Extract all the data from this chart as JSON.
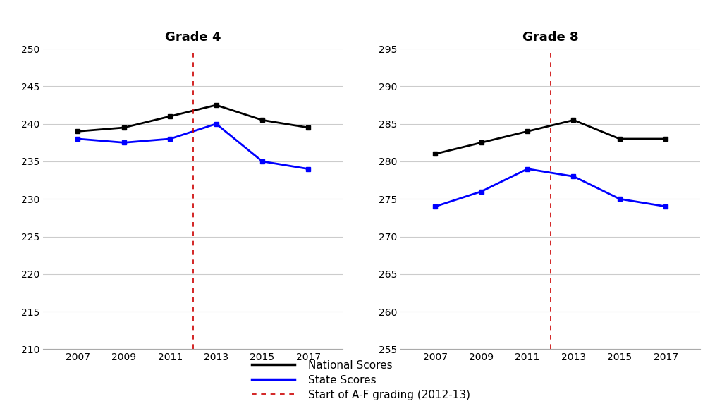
{
  "years": [
    2007,
    2009,
    2011,
    2013,
    2015,
    2017
  ],
  "grade4": {
    "title": "Grade 4",
    "national": [
      239,
      239.5,
      241,
      242.5,
      240.5,
      239.5
    ],
    "state": [
      238,
      237.5,
      238,
      240,
      235,
      234
    ]
  },
  "grade8": {
    "title": "Grade 8",
    "national": [
      281,
      282.5,
      284,
      285.5,
      283,
      283
    ],
    "state": [
      274,
      276,
      279,
      278,
      275,
      274
    ]
  },
  "grade4_ylim": [
    210,
    250
  ],
  "grade4_yticks": [
    210,
    215,
    220,
    225,
    230,
    235,
    240,
    245,
    250
  ],
  "grade8_ylim": [
    255,
    295
  ],
  "grade8_yticks": [
    255,
    260,
    265,
    270,
    275,
    280,
    285,
    290,
    295
  ],
  "vline_x": 2012.0,
  "national_color": "#000000",
  "state_color": "#0000FF",
  "vline_color": "#CC0000",
  "legend_national": "National Scores",
  "legend_state": "State Scores",
  "legend_vline": "Start of A-F grading (2012-13)",
  "marker": "s",
  "linewidth": 2.0,
  "markersize": 5,
  "title_fontsize": 13,
  "tick_fontsize": 10,
  "legend_fontsize": 11,
  "bg_color": "#ffffff"
}
